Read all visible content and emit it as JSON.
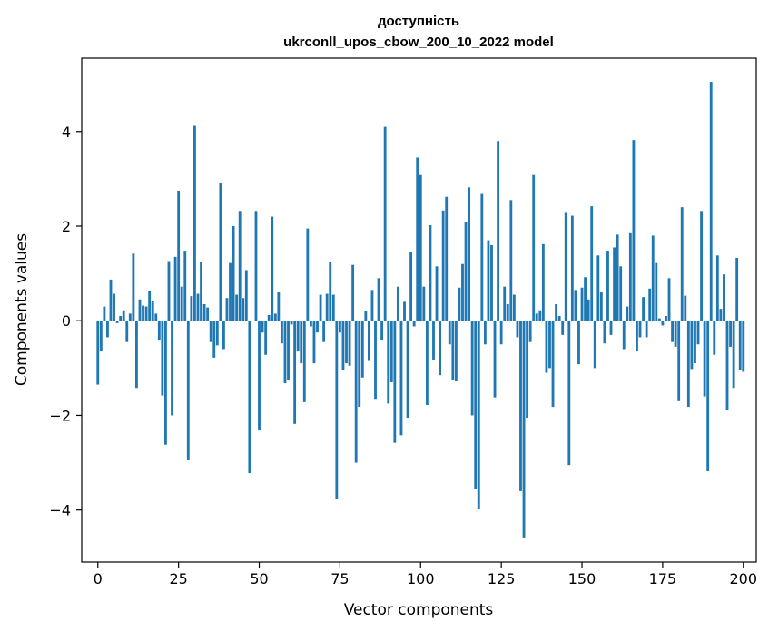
{
  "chart_data": {
    "type": "bar",
    "title": "доступність",
    "subtitle": "ukrconll_upos_cbow_200_10_2022 model",
    "xlabel": "Vector components",
    "ylabel": "Components values",
    "xlim": [
      -5,
      204
    ],
    "ylim": [
      -5.1,
      5.55
    ],
    "xticks": [
      0,
      25,
      50,
      75,
      100,
      125,
      150,
      175,
      200
    ],
    "yticks": [
      -4,
      -2,
      0,
      2,
      4
    ],
    "bar_color": "#1f77b4",
    "grid": false,
    "values": [
      -1.35,
      -0.65,
      0.3,
      -0.35,
      0.87,
      0.57,
      -0.05,
      0.1,
      0.22,
      -0.45,
      0.15,
      1.42,
      -1.42,
      0.45,
      0.32,
      0.3,
      0.62,
      0.42,
      0.15,
      -0.4,
      -1.58,
      -2.62,
      1.26,
      -2.0,
      1.35,
      2.75,
      0.72,
      1.48,
      -2.95,
      0.52,
      4.12,
      0.57,
      1.25,
      0.35,
      0.28,
      -0.45,
      -0.78,
      -0.52,
      2.92,
      -0.6,
      0.48,
      1.22,
      2.0,
      0.55,
      2.32,
      0.48,
      1.07,
      -3.22,
      0.0,
      2.32,
      -2.32,
      -0.25,
      -0.72,
      0.12,
      2.2,
      0.15,
      0.6,
      -0.48,
      -1.32,
      -1.25,
      -0.08,
      -2.18,
      -0.65,
      -0.9,
      -1.72,
      1.95,
      -0.12,
      -0.9,
      -0.25,
      0.55,
      -0.45,
      0.57,
      1.25,
      0.55,
      -3.76,
      -0.25,
      -1.05,
      -0.9,
      -0.95,
      1.18,
      -3.0,
      -1.82,
      -1.2,
      0.2,
      -0.85,
      0.65,
      -1.65,
      0.9,
      -0.4,
      4.1,
      -1.75,
      -1.3,
      -2.58,
      0.72,
      -2.42,
      0.4,
      -2.05,
      1.46,
      -0.12,
      3.45,
      3.08,
      0.72,
      -1.78,
      2.02,
      -0.82,
      1.15,
      -1.15,
      2.33,
      2.62,
      -0.5,
      -1.25,
      -1.28,
      0.7,
      1.2,
      2.08,
      2.82,
      -2.0,
      -3.55,
      -3.98,
      2.68,
      -0.5,
      1.7,
      1.6,
      -1.62,
      3.8,
      -0.5,
      0.72,
      0.35,
      2.55,
      0.55,
      -0.35,
      -3.6,
      -4.58,
      -2.05,
      -0.45,
      3.08,
      0.15,
      0.22,
      1.62,
      -1.1,
      -1.0,
      -1.82,
      0.35,
      0.1,
      -0.3,
      2.28,
      -3.05,
      2.22,
      0.65,
      -0.92,
      0.7,
      0.92,
      0.45,
      2.42,
      -1.0,
      1.38,
      0.6,
      -0.48,
      1.48,
      -0.3,
      1.55,
      1.82,
      1.15,
      -0.6,
      0.3,
      1.85,
      3.82,
      -0.65,
      -0.35,
      0.5,
      -0.35,
      0.68,
      1.8,
      1.22,
      0.05,
      -0.1,
      0.1,
      0.9,
      -0.45,
      -0.55,
      -1.7,
      2.4,
      0.53,
      -1.82,
      -1.02,
      -0.9,
      -0.5,
      2.32,
      -1.6,
      -3.18,
      5.05,
      -0.72,
      1.38,
      0.25,
      0.98,
      -1.88,
      -0.55,
      -1.42,
      1.33,
      -1.05,
      -1.08
    ]
  }
}
